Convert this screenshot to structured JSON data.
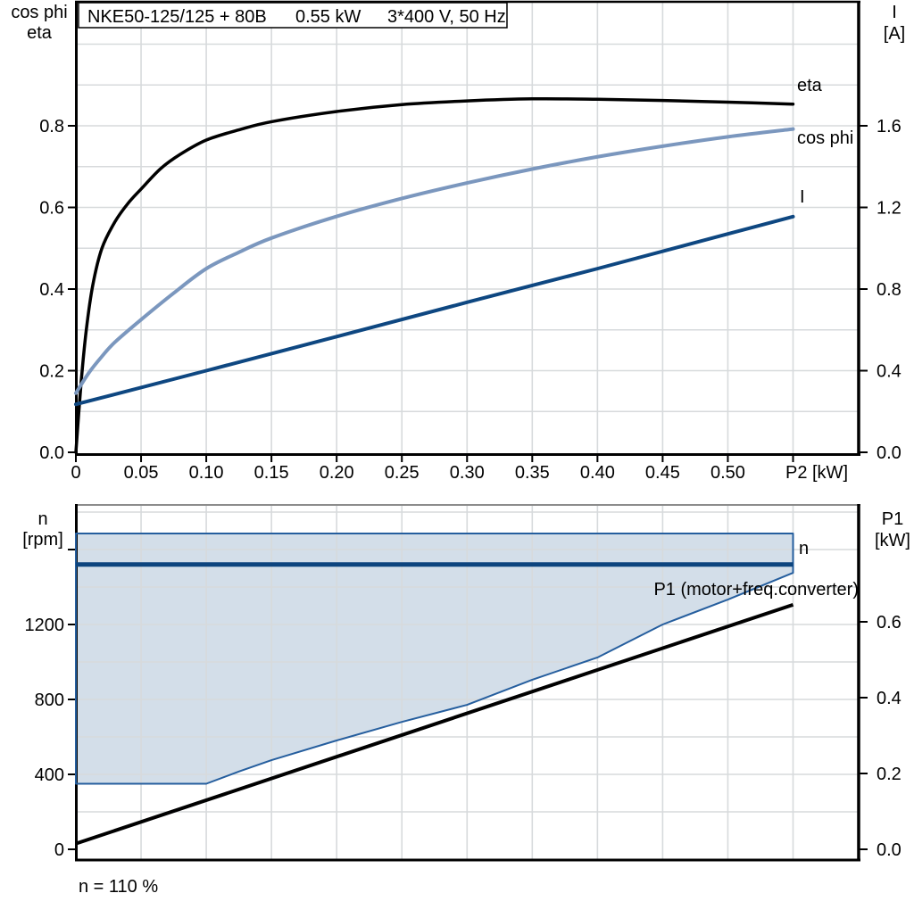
{
  "title_box": {
    "model": "NKE50-125/125 + 80B",
    "power": "0.55 kW",
    "supply": "3*400 V, 50 Hz"
  },
  "top_chart": {
    "left_axis_label1": "cos phi",
    "left_axis_label2": "eta",
    "right_axis_label1": "I",
    "right_axis_label2": "[A]",
    "x_axis_label": "P2 [kW]",
    "curve_label_eta": "eta",
    "curve_label_cos_phi": "cos phi",
    "curve_label_current": "I"
  },
  "bottom_chart": {
    "left_axis_label1": "n",
    "left_axis_label2": "[rpm]",
    "right_axis_label1": "P1",
    "right_axis_label2": "[kW]",
    "curve_label_n": "n",
    "curve_label_p1": "P1 (motor+freq.converter)",
    "footnote": "n = 110 %"
  },
  "colors": {
    "eta": "#000000",
    "cos_phi": "#7B97BE",
    "current": "#0E4781",
    "n_line": "#0C447E",
    "area_fill": "#D3DEE9",
    "area_border": "#255E9E",
    "p1_line": "#000000",
    "grid": "#D7DADC",
    "frame": "#000000",
    "frame_gray": "#8C8C8C",
    "label_blue": "#2B5F9E"
  },
  "chart_data": [
    {
      "type": "line",
      "title": "NKE50-125/125 + 80B  0.55 kW  3*400 V, 50 Hz",
      "xlabel": "P2 [kW]",
      "ylabel_left": "cos phi / eta",
      "ylabel_right": "I [A]",
      "xlim": [
        0,
        0.601
      ],
      "ylim_left": [
        0,
        1.107
      ],
      "ylim_right": [
        0,
        2.214
      ],
      "grid": {
        "h_step": 0.1,
        "v_step": 0.05
      },
      "x_ticks": [
        {
          "v": 0,
          "t": "0"
        },
        {
          "v": 0.05,
          "t": "0.05"
        },
        {
          "v": 0.1,
          "t": "0.10"
        },
        {
          "v": 0.15,
          "t": "0.15"
        },
        {
          "v": 0.2,
          "t": "0.20"
        },
        {
          "v": 0.25,
          "t": "0.25"
        },
        {
          "v": 0.3,
          "t": "0.30"
        },
        {
          "v": 0.35,
          "t": "0.35"
        },
        {
          "v": 0.4,
          "t": "0.40"
        },
        {
          "v": 0.45,
          "t": "0.45"
        },
        {
          "v": 0.5,
          "t": "0.50"
        },
        {
          "v": 0.55,
          "t": ""
        }
      ],
      "y_ticks_left": [
        {
          "v": 0.0,
          "t": "0.0"
        },
        {
          "v": 0.2,
          "t": "0.2"
        },
        {
          "v": 0.4,
          "t": "0.4"
        },
        {
          "v": 0.6,
          "t": "0.6"
        },
        {
          "v": 0.8,
          "t": "0.8"
        }
      ],
      "y_ticks_right": [
        {
          "v": 0.0,
          "t": "0.0"
        },
        {
          "v": 0.4,
          "t": "0.4"
        },
        {
          "v": 0.8,
          "t": "0.8"
        },
        {
          "v": 1.2,
          "t": "1.2"
        },
        {
          "v": 1.6,
          "t": "1.6"
        }
      ],
      "series": [
        {
          "name": "eta",
          "axis": "left",
          "smooth": true,
          "width": 3.5,
          "x": [
            0,
            0.004,
            0.008,
            0.013,
            0.02,
            0.03,
            0.04,
            0.05,
            0.065,
            0.08,
            0.1,
            0.125,
            0.15,
            0.2,
            0.25,
            0.3,
            0.35,
            0.4,
            0.45,
            0.5,
            0.55
          ],
          "y": [
            0,
            0.17,
            0.3,
            0.41,
            0.5,
            0.565,
            0.61,
            0.645,
            0.695,
            0.73,
            0.765,
            0.79,
            0.81,
            0.835,
            0.852,
            0.861,
            0.866,
            0.865,
            0.862,
            0.858,
            0.853
          ]
        },
        {
          "name": "cos phi",
          "axis": "left",
          "smooth": true,
          "width": 4,
          "x": [
            0,
            0.01,
            0.02,
            0.03,
            0.05,
            0.075,
            0.1,
            0.125,
            0.15,
            0.2,
            0.25,
            0.3,
            0.35,
            0.4,
            0.45,
            0.5,
            0.55
          ],
          "y": [
            0.145,
            0.195,
            0.235,
            0.27,
            0.325,
            0.39,
            0.45,
            0.49,
            0.525,
            0.578,
            0.622,
            0.66,
            0.694,
            0.724,
            0.75,
            0.773,
            0.792
          ]
        },
        {
          "name": "I",
          "axis": "right",
          "smooth": false,
          "width": 4,
          "x": [
            0,
            0.1,
            0.2,
            0.3,
            0.4,
            0.5,
            0.55
          ],
          "y": [
            0.235,
            0.4,
            0.567,
            0.735,
            0.9,
            1.07,
            1.155
          ]
        }
      ]
    },
    {
      "type": "line+area",
      "xlabel": "",
      "ylabel_left": "n [rpm]",
      "ylabel_right": "P1 [kW]",
      "footnote": "n = 110 %",
      "xlim": [
        0,
        0.601
      ],
      "ylim_left": [
        -62,
        1843
      ],
      "ylim_right": [
        -0.031,
        0.922
      ],
      "grid": {
        "h_step": 200,
        "v_step": 0.05
      },
      "y_ticks_left": [
        {
          "v": 0,
          "t": "0"
        },
        {
          "v": 400,
          "t": "400"
        },
        {
          "v": 800,
          "t": "800"
        },
        {
          "v": 1200,
          "t": "1200"
        },
        {
          "v": 1600,
          "t": ""
        }
      ],
      "y_ticks_right": [
        {
          "v": 0.0,
          "t": "0.0"
        },
        {
          "v": 0.2,
          "t": "0.2"
        },
        {
          "v": 0.4,
          "t": "0.4"
        },
        {
          "v": 0.6,
          "t": "0.6"
        }
      ],
      "area": {
        "name": "speed-operating-range",
        "upper_rpm": 1686,
        "x_end": 0.55,
        "lower_boundary": [
          [
            0,
            350
          ],
          [
            0.1,
            350
          ],
          [
            0.125,
            415
          ],
          [
            0.15,
            476
          ],
          [
            0.2,
            581
          ],
          [
            0.25,
            680
          ],
          [
            0.3,
            771
          ],
          [
            0.35,
            905
          ],
          [
            0.4,
            1024
          ],
          [
            0.45,
            1200
          ],
          [
            0.5,
            1333
          ],
          [
            0.55,
            1476
          ]
        ]
      },
      "series": [
        {
          "name": "n",
          "axis": "left",
          "smooth": false,
          "width": 5,
          "x": [
            0,
            0.55
          ],
          "y": [
            1520,
            1520
          ]
        },
        {
          "name": "P1 (motor+freq.converter)",
          "axis": "right",
          "smooth": false,
          "width": 4,
          "x": [
            0,
            0.55
          ],
          "y": [
            0.015,
            0.645
          ]
        }
      ]
    }
  ]
}
